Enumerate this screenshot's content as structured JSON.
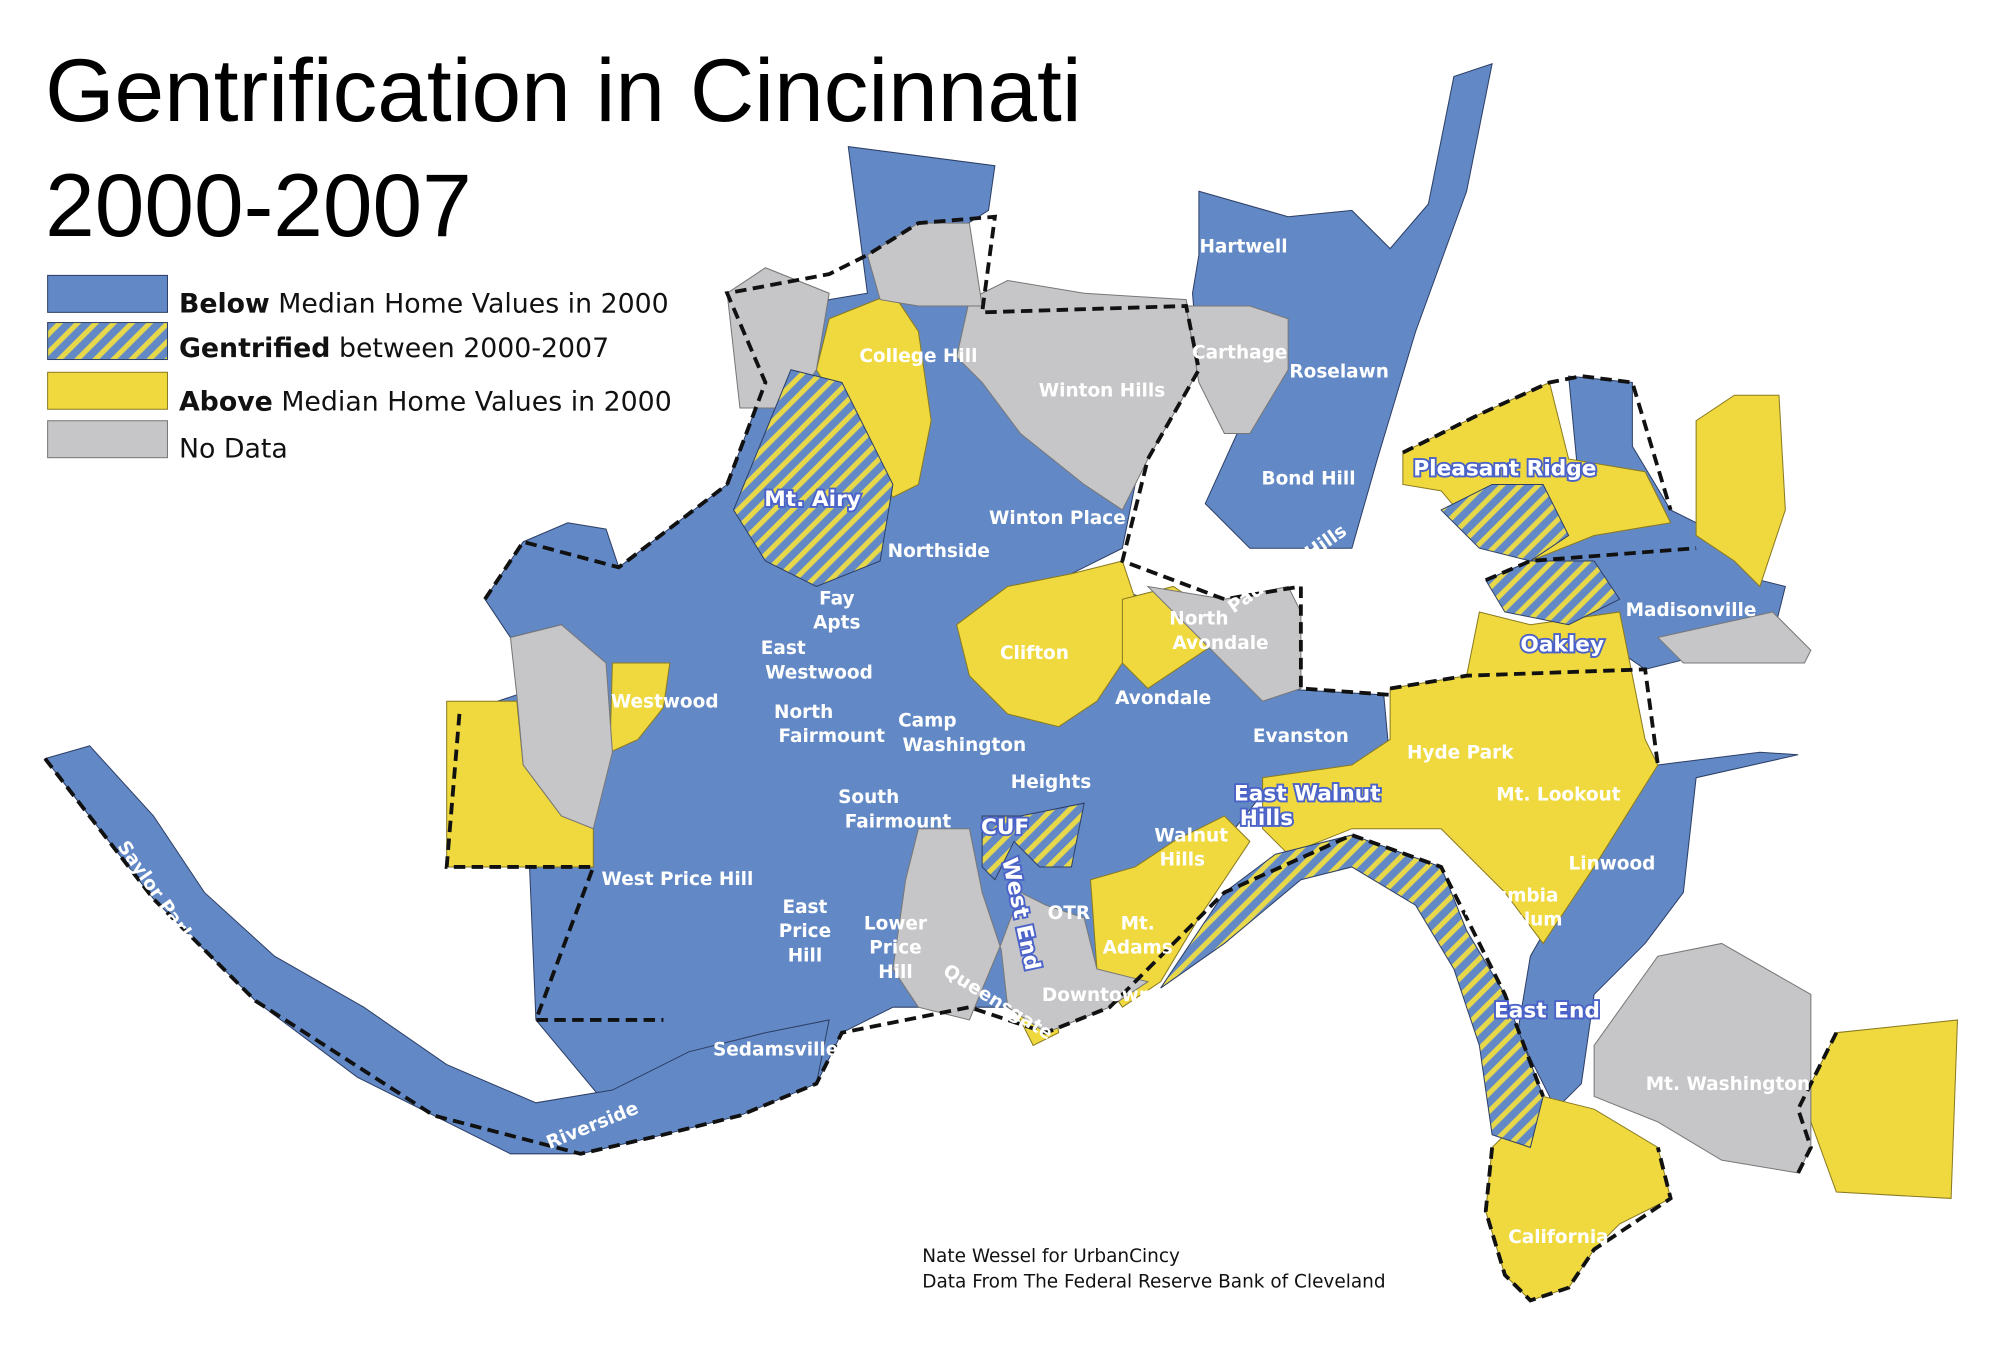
{
  "title": {
    "line1": "Gentrification in Cincinnati",
    "line2": "2000-2007"
  },
  "legend": [
    {
      "bold": "Below",
      "text": "Median Home Values in 2000"
    },
    {
      "bold": "Gentrified",
      "text": "between 2000-2007"
    },
    {
      "bold": "Above",
      "text": "Median Home Values in 2000"
    },
    {
      "text": "No Data"
    }
  ],
  "neighborhoods": [
    {
      "lines": [
        "Hartwell"
      ]
    },
    {
      "lines": [
        "Carthage"
      ]
    },
    {
      "lines": [
        "Roselawn"
      ]
    },
    {
      "lines": [
        "College Hill"
      ]
    },
    {
      "lines": [
        "Winton Hills"
      ]
    },
    {
      "lines": [
        "Pleasant Ridge"
      ]
    },
    {
      "lines": [
        "Bond Hill"
      ]
    },
    {
      "lines": [
        "Mt. Airy"
      ]
    },
    {
      "lines": [
        "Winton Place"
      ]
    },
    {
      "lines": [
        "Northside"
      ]
    },
    {
      "lines": [
        "Paddock Hills"
      ]
    },
    {
      "lines": [
        "Fay",
        "Apts"
      ]
    },
    {
      "lines": [
        "Madisonville"
      ]
    },
    {
      "lines": [
        "North",
        "Avondale"
      ]
    },
    {
      "lines": [
        "Clifton"
      ]
    },
    {
      "lines": [
        "Oakley"
      ]
    },
    {
      "lines": [
        "East",
        "Westwood"
      ]
    },
    {
      "lines": [
        "Westwood"
      ]
    },
    {
      "lines": [
        "Avondale"
      ]
    },
    {
      "lines": [
        "North",
        "Fairmount"
      ]
    },
    {
      "lines": [
        "Camp",
        "Washington"
      ]
    },
    {
      "lines": [
        "Evanston"
      ]
    },
    {
      "lines": [
        "Hyde Park"
      ]
    },
    {
      "lines": [
        "Heights"
      ]
    },
    {
      "lines": [
        "East Walnut",
        "Hills"
      ]
    },
    {
      "lines": [
        "Mt. Lookout"
      ]
    },
    {
      "lines": [
        "South",
        "Fairmount"
      ]
    },
    {
      "lines": [
        "CUF"
      ]
    },
    {
      "lines": [
        "Walnut",
        "Hills"
      ]
    },
    {
      "lines": [
        "Linwood"
      ]
    },
    {
      "lines": [
        "West Price Hill"
      ]
    },
    {
      "lines": [
        "West End"
      ]
    },
    {
      "lines": [
        "Columbia",
        "Tusculum"
      ]
    },
    {
      "lines": [
        "East",
        "Price",
        "Hill"
      ]
    },
    {
      "lines": [
        "Lower",
        "Price",
        "Hill"
      ]
    },
    {
      "lines": [
        "OTR"
      ]
    },
    {
      "lines": [
        "Mt.",
        "Adams"
      ]
    },
    {
      "lines": [
        "Downtown"
      ]
    },
    {
      "lines": [
        "Queensgate"
      ]
    },
    {
      "lines": [
        "East End"
      ]
    },
    {
      "lines": [
        "Sedamsville"
      ]
    },
    {
      "lines": [
        "Mt. Washington"
      ]
    },
    {
      "lines": [
        "Riverside"
      ]
    },
    {
      "lines": [
        "Saylor Park"
      ]
    },
    {
      "lines": [
        "California"
      ]
    }
  ],
  "credits": [
    "Nate Wessel for UrbanCincy",
    "Data From The Federal Reserve Bank of Cleveland"
  ]
}
